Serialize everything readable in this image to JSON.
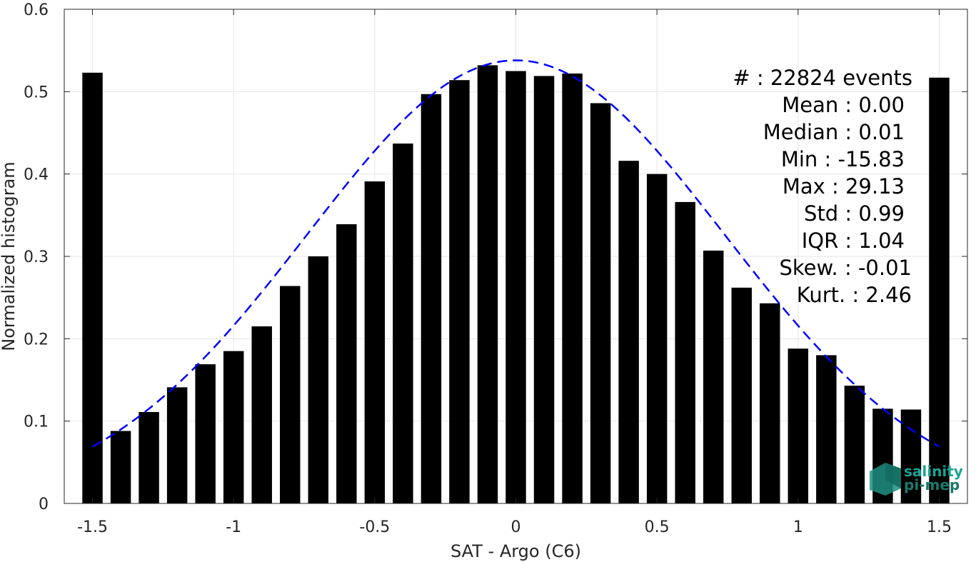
{
  "chart_data": {
    "type": "bar",
    "xlabel": "SAT - Argo (C6)",
    "ylabel": "Normalized histogram",
    "xlim": [
      -1.6,
      1.6
    ],
    "ylim": [
      0,
      0.6
    ],
    "grid": true,
    "x_ticks": [
      "-1.5",
      "-1",
      "-0.5",
      "0",
      "0.5",
      "1",
      "1.5"
    ],
    "y_ticks": [
      "0",
      "0.1",
      "0.2",
      "0.3",
      "0.4",
      "0.5",
      "0.6"
    ],
    "bar_color": "#000000",
    "x": [
      -1.5,
      -1.4,
      -1.3,
      -1.2,
      -1.1,
      -1.0,
      -0.9,
      -0.8,
      -0.7,
      -0.6,
      -0.5,
      -0.4,
      -0.3,
      -0.2,
      -0.1,
      0.0,
      0.1,
      0.2,
      0.3,
      0.4,
      0.5,
      0.6,
      0.7,
      0.8,
      0.9,
      1.0,
      1.1,
      1.2,
      1.3,
      1.4,
      1.5
    ],
    "values": [
      0.523,
      0.088,
      0.111,
      0.141,
      0.169,
      0.185,
      0.215,
      0.264,
      0.3,
      0.339,
      0.391,
      0.437,
      0.497,
      0.514,
      0.532,
      0.525,
      0.519,
      0.522,
      0.486,
      0.416,
      0.4,
      0.366,
      0.307,
      0.262,
      0.243,
      0.188,
      0.18,
      0.143,
      0.115,
      0.114,
      0.517
    ],
    "fit_curve": {
      "style": "dashed",
      "color": "#0000ff",
      "mean": 0.0,
      "std": 0.74,
      "peak": 0.538,
      "x_range": [
        -1.5,
        1.5
      ]
    },
    "annotations": [
      "#  : 22824 events",
      "Mean : 0.00",
      "Median : 0.01",
      "Min : -15.83",
      "Max : 29.13",
      "Std : 0.99",
      "IQR : 1.04",
      "Skew. : -0.01",
      "Kurt. : 2.46"
    ]
  },
  "logo": {
    "line1": "salinity",
    "line2": "pi-mep",
    "color": "#1aa593"
  }
}
